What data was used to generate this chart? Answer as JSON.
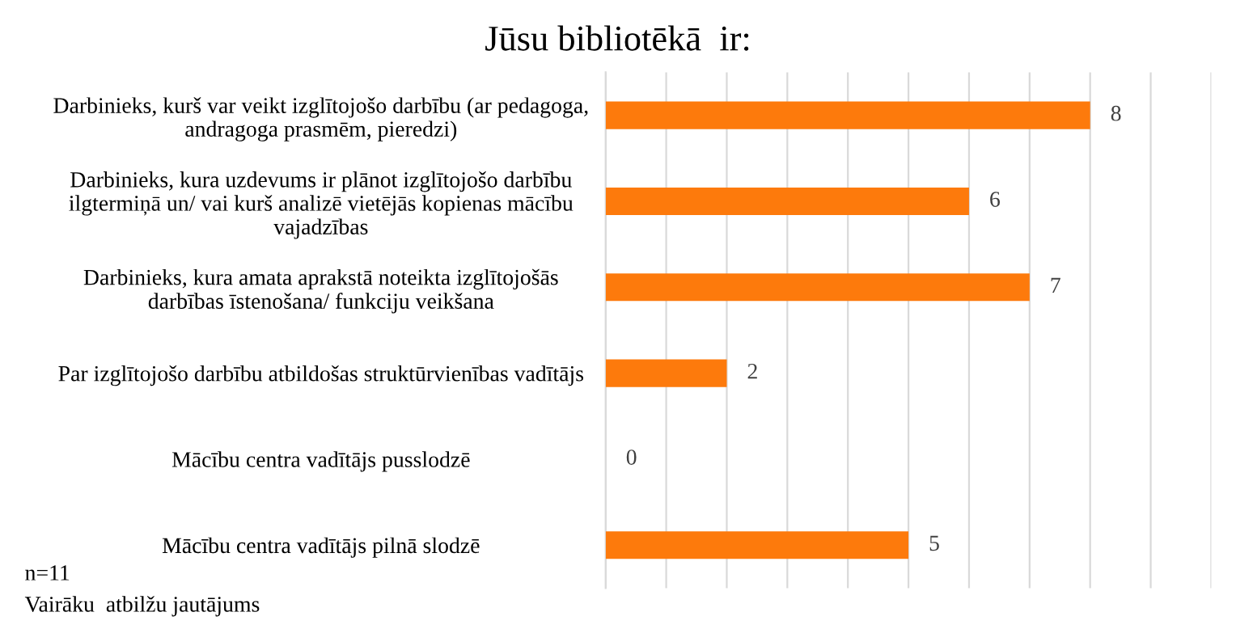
{
  "chart_data": {
    "type": "bar",
    "orientation": "horizontal",
    "title": "Jūsu bibliotēkā  ir:",
    "categories": [
      "Darbinieks, kurš var veikt izglītojošo darbību (ar pedagoga,\nandragoga prasmēm, pieredzi)",
      "Darbinieks, kura uzdevums ir plānot izglītojošo darbību\nilgtermiņā un/ vai kurš analizē vietējās kopienas mācību\nvajadzības",
      "Darbinieks, kura amata aprakstā noteikta izglītojošās\ndarbības īstenošana/ funkciju veikšana",
      "Par izglītojošo darbību atbildošas struktūrvienības vadītājs",
      "Mācību centra vadītājs pusslodzē",
      "Mācību centra vadītājs pilnā slodzē"
    ],
    "values": [
      8,
      6,
      7,
      2,
      0,
      5
    ],
    "color": "#fd7a0c",
    "data_labels": true,
    "xlim": [
      0,
      10
    ],
    "xticks": [
      {
        "value": 0,
        "label": null
      },
      {
        "value": 1,
        "label": null
      },
      {
        "value": 2,
        "label": null
      },
      {
        "value": 3,
        "label": null
      },
      {
        "value": 4,
        "label": null
      },
      {
        "value": 5,
        "label": null
      },
      {
        "value": 6,
        "label": null
      },
      {
        "value": 7,
        "label": null
      },
      {
        "value": 8,
        "label": null
      },
      {
        "value": 9,
        "label": null
      },
      {
        "value": 10,
        "label": null
      }
    ],
    "grid": "x",
    "tick_labels": "y",
    "annotations": [
      "n=11",
      "Vairāku  atbilžu jautājums"
    ]
  }
}
